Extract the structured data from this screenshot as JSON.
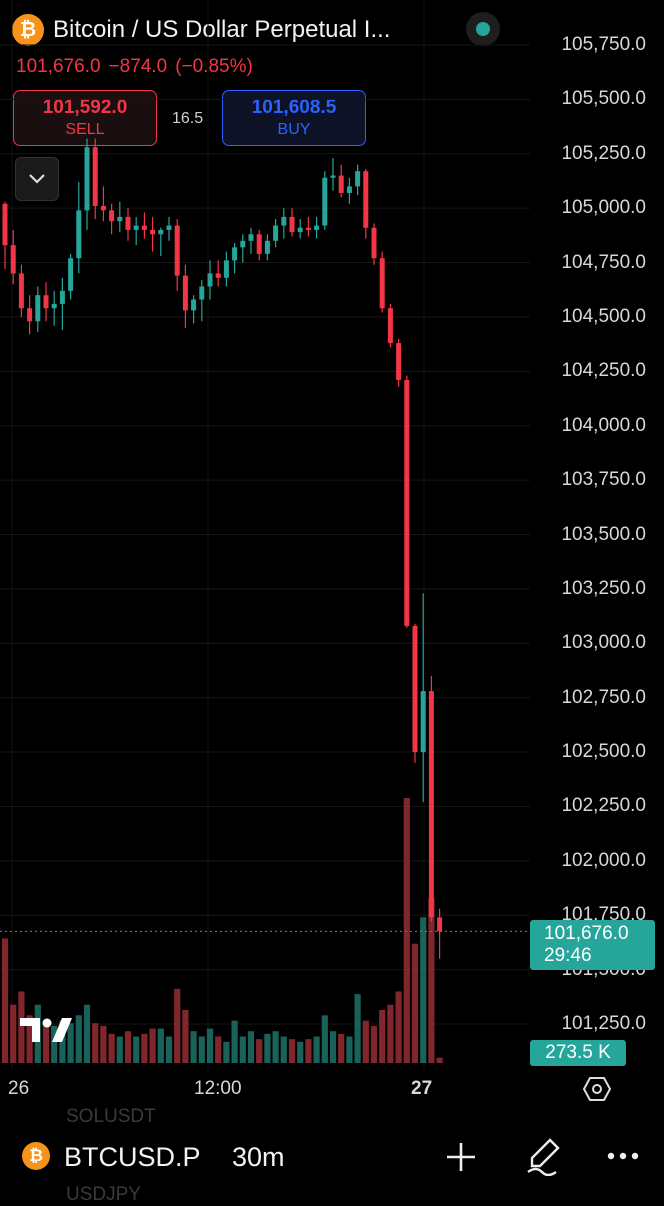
{
  "header": {
    "title": "Bitcoin / US Dollar Perpetual I...",
    "coin_icon": "bitcoin-icon",
    "live_indicator": "live-dot-icon",
    "last_price": "101,676.0",
    "change": "−874.0",
    "change_pct": "(−0.85%)"
  },
  "trade": {
    "sell_price": "101,592.0",
    "sell_label": "SELL",
    "buy_price": "101,608.5",
    "buy_label": "BUY",
    "spread": "16.5"
  },
  "price_axis": [
    "105,750.0",
    "105,500.0",
    "105,250.0",
    "105,000.0",
    "104,750.0",
    "104,500.0",
    "104,250.0",
    "104,000.0",
    "103,750.0",
    "103,500.0",
    "103,250.0",
    "103,000.0",
    "102,750.0",
    "102,500.0",
    "102,250.0",
    "102,000.0",
    "101,750.0",
    "101,500.0",
    "101,250.0"
  ],
  "last_price_marker": {
    "price": "101,676.0",
    "countdown": "29:46"
  },
  "volume_marker": "273.5 K",
  "time_axis": [
    "26",
    "12:00",
    "27"
  ],
  "ghost_rows": [
    "SOLUSDT",
    "USDJPY"
  ],
  "toolbar": {
    "symbol": "BTCUSD.P",
    "interval": "30m",
    "add_icon": "plus-icon",
    "draw_icon": "brush-icon",
    "more_icon": "more-icon"
  },
  "colors": {
    "up": "#26a69a",
    "down": "#f23645",
    "buy": "#2962ff",
    "accent": "#f7931a"
  },
  "chart_data": {
    "type": "candlestick",
    "interval": "30m",
    "ohlc": [
      [
        105020,
        105030,
        104720,
        104830
      ],
      [
        104830,
        104900,
        104650,
        104700
      ],
      [
        104700,
        104740,
        104500,
        104540
      ],
      [
        104540,
        104600,
        104420,
        104480
      ],
      [
        104480,
        104640,
        104430,
        104600
      ],
      [
        104600,
        104660,
        104480,
        104540
      ],
      [
        104540,
        104620,
        104460,
        104560
      ],
      [
        104560,
        104680,
        104440,
        104620
      ],
      [
        104620,
        104790,
        104580,
        104770
      ],
      [
        104770,
        105120,
        104700,
        104990
      ],
      [
        104990,
        105320,
        104900,
        105280
      ],
      [
        105280,
        105320,
        104950,
        105010
      ],
      [
        105010,
        105100,
        104940,
        104990
      ],
      [
        104990,
        105020,
        104880,
        104940
      ],
      [
        104940,
        105030,
        104890,
        104960
      ],
      [
        104960,
        105000,
        104850,
        104900
      ],
      [
        104900,
        104960,
        104830,
        104920
      ],
      [
        104920,
        104980,
        104860,
        104900
      ],
      [
        104900,
        104960,
        104800,
        104880
      ],
      [
        104880,
        104910,
        104780,
        104900
      ],
      [
        104900,
        104960,
        104850,
        104920
      ],
      [
        104920,
        104950,
        104620,
        104690
      ],
      [
        104690,
        104740,
        104450,
        104530
      ],
      [
        104530,
        104600,
        104470,
        104580
      ],
      [
        104580,
        104670,
        104480,
        104640
      ],
      [
        104640,
        104760,
        104580,
        104700
      ],
      [
        104700,
        104760,
        104640,
        104680
      ],
      [
        104680,
        104800,
        104640,
        104760
      ],
      [
        104760,
        104840,
        104700,
        104820
      ],
      [
        104820,
        104880,
        104750,
        104850
      ],
      [
        104850,
        104910,
        104790,
        104880
      ],
      [
        104880,
        104900,
        104760,
        104790
      ],
      [
        104790,
        104880,
        104760,
        104850
      ],
      [
        104850,
        104950,
        104820,
        104920
      ],
      [
        104920,
        105000,
        104860,
        104960
      ],
      [
        104960,
        105000,
        104870,
        104890
      ],
      [
        104890,
        104950,
        104860,
        104910
      ],
      [
        104910,
        104960,
        104870,
        104900
      ],
      [
        104900,
        104960,
        104860,
        104920
      ],
      [
        104920,
        105170,
        104900,
        105140
      ],
      [
        105140,
        105230,
        105080,
        105150
      ],
      [
        105150,
        105200,
        105050,
        105070
      ],
      [
        105070,
        105140,
        105020,
        105100
      ],
      [
        105100,
        105200,
        105060,
        105170
      ],
      [
        105170,
        105180,
        104860,
        104910
      ],
      [
        104910,
        104930,
        104740,
        104770
      ],
      [
        104770,
        104800,
        104520,
        104540
      ],
      [
        104540,
        104560,
        104360,
        104380
      ],
      [
        104380,
        104400,
        104180,
        104210
      ],
      [
        104210,
        104230,
        103070,
        103080
      ],
      [
        103080,
        103090,
        102450,
        102500
      ],
      [
        102500,
        103230,
        102270,
        102780
      ],
      [
        102780,
        102850,
        101720,
        101740
      ],
      [
        101740,
        101780,
        101550,
        101676
      ]
    ],
    "volume_relative": [
      0.47,
      0.22,
      0.27,
      0.18,
      0.22,
      0.16,
      0.14,
      0.16,
      0.15,
      0.18,
      0.22,
      0.15,
      0.14,
      0.11,
      0.1,
      0.12,
      0.1,
      0.11,
      0.13,
      0.13,
      0.1,
      0.28,
      0.2,
      0.12,
      0.1,
      0.13,
      0.1,
      0.08,
      0.16,
      0.1,
      0.12,
      0.09,
      0.11,
      0.12,
      0.1,
      0.09,
      0.08,
      0.09,
      0.1,
      0.18,
      0.12,
      0.11,
      0.1,
      0.26,
      0.16,
      0.14,
      0.2,
      0.22,
      0.27,
      1.0,
      0.45,
      0.55,
      0.62,
      0.02
    ],
    "ylim": [
      101150,
      105850
    ]
  }
}
